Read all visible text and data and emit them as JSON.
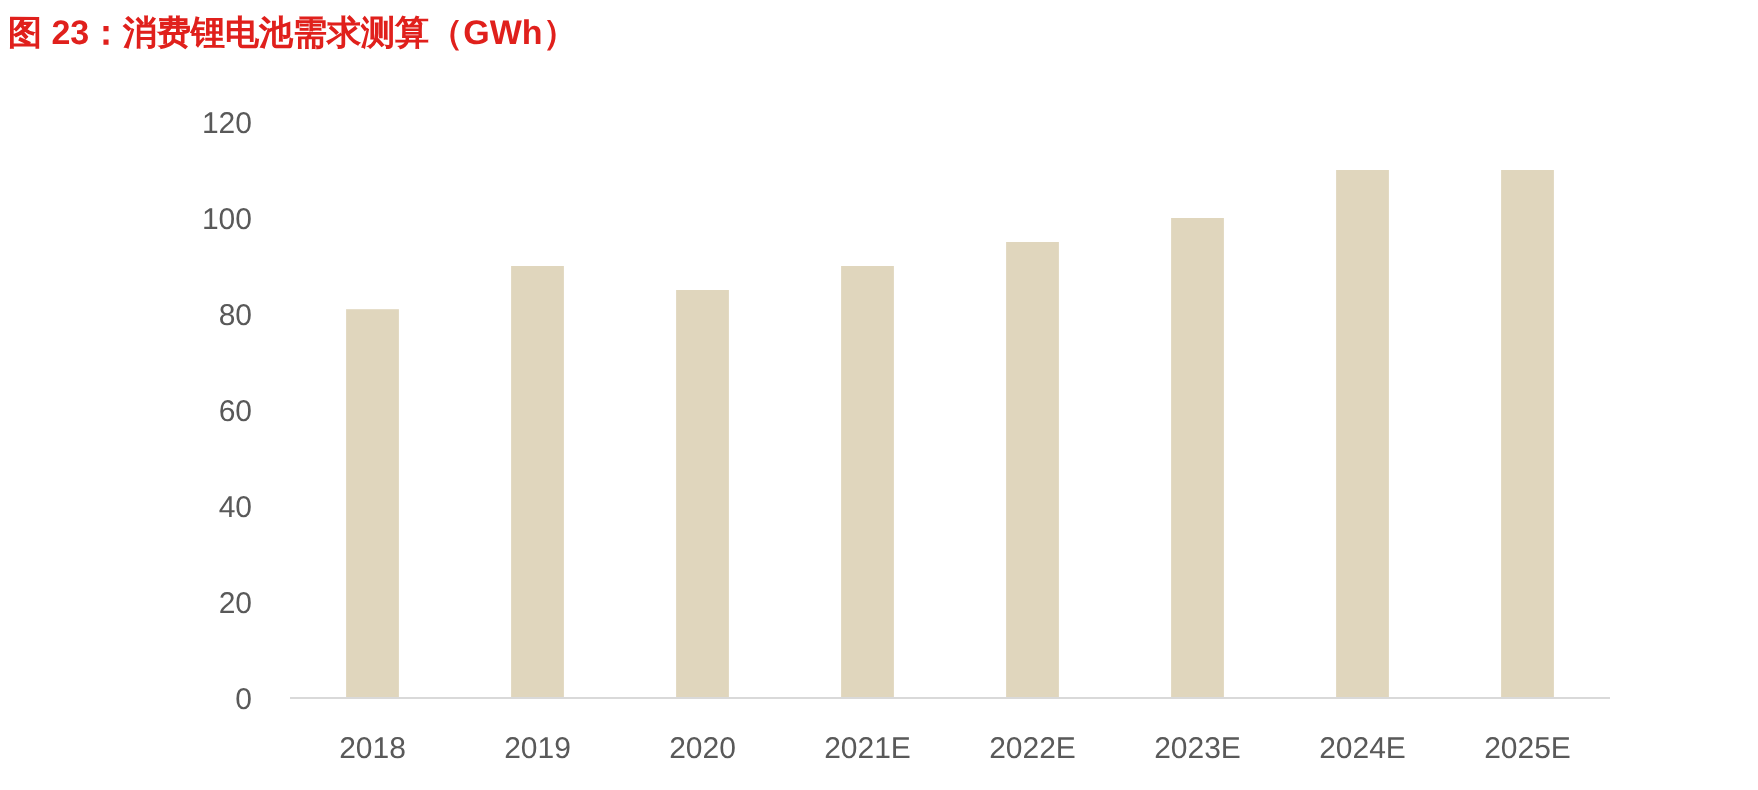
{
  "chart_data": {
    "type": "bar",
    "title": "图 23：消费锂电池需求测算（GWh）",
    "categories": [
      "2018",
      "2019",
      "2020",
      "2021E",
      "2022E",
      "2023E",
      "2024E",
      "2025E"
    ],
    "values": [
      81,
      90,
      85,
      90,
      95,
      100,
      110,
      110
    ],
    "color": "#e0d6bd",
    "ylim": [
      0,
      120
    ],
    "yticks": [
      0,
      20,
      40,
      60,
      80,
      100,
      120
    ],
    "grid": false
  }
}
